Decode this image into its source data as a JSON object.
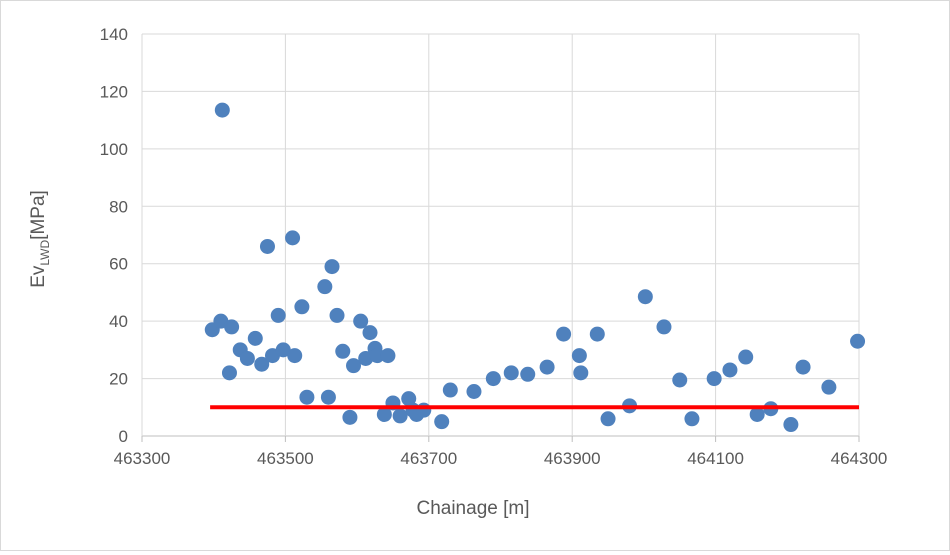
{
  "chart_data": {
    "type": "scatter",
    "title": "",
    "xlabel": "Chainage [m]",
    "ylabel": {
      "main": "Ev",
      "subscript": "LWD",
      "unit": "[MPa]"
    },
    "xlim": [
      463300,
      464300
    ],
    "ylim": [
      0,
      140
    ],
    "xticks": [
      "463300",
      "463500",
      "463700",
      "463900",
      "464100",
      "464300"
    ],
    "yticks": [
      "0",
      "20",
      "40",
      "60",
      "80",
      "100",
      "120",
      "140"
    ],
    "grid": true,
    "legend": "none",
    "colors": {
      "points": "#4f81bd",
      "threshold": "#ff0000",
      "grid": "#d9d9d9",
      "axis": "#bfbfbf",
      "text": "#595959"
    },
    "threshold": {
      "y": 10,
      "x_from": 463395,
      "x_to": 464300
    },
    "series": [
      {
        "points": [
          [
            463398,
            37
          ],
          [
            463410,
            40
          ],
          [
            463412,
            113.5
          ],
          [
            463422,
            22
          ],
          [
            463425,
            38
          ],
          [
            463437,
            30
          ],
          [
            463447,
            27
          ],
          [
            463458,
            34
          ],
          [
            463467,
            25
          ],
          [
            463475,
            66
          ],
          [
            463482,
            28
          ],
          [
            463490,
            42
          ],
          [
            463497,
            30
          ],
          [
            463510,
            69
          ],
          [
            463513,
            28
          ],
          [
            463523,
            45
          ],
          [
            463530,
            13.5
          ],
          [
            463555,
            52
          ],
          [
            463560,
            13.5
          ],
          [
            463565,
            59
          ],
          [
            463572,
            42
          ],
          [
            463580,
            29.5
          ],
          [
            463590,
            6.5
          ],
          [
            463595,
            24.5
          ],
          [
            463605,
            40
          ],
          [
            463612,
            27
          ],
          [
            463618,
            36
          ],
          [
            463625,
            30.5
          ],
          [
            463628,
            28
          ],
          [
            463638,
            7.5
          ],
          [
            463643,
            28
          ],
          [
            463650,
            11.5
          ],
          [
            463660,
            7
          ],
          [
            463672,
            13
          ],
          [
            463678,
            9
          ],
          [
            463683,
            7.5
          ],
          [
            463693,
            9
          ],
          [
            463718,
            5
          ],
          [
            463730,
            16
          ],
          [
            463763,
            15.5
          ],
          [
            463790,
            20
          ],
          [
            463815,
            22
          ],
          [
            463838,
            21.5
          ],
          [
            463865,
            24
          ],
          [
            463888,
            35.5
          ],
          [
            463910,
            28
          ],
          [
            463912,
            22
          ],
          [
            463935,
            35.5
          ],
          [
            463950,
            6
          ],
          [
            463980,
            10.5
          ],
          [
            464002,
            48.5
          ],
          [
            464028,
            38
          ],
          [
            464050,
            19.5
          ],
          [
            464067,
            6
          ],
          [
            464098,
            20
          ],
          [
            464120,
            23
          ],
          [
            464142,
            27.5
          ],
          [
            464158,
            7.5
          ],
          [
            464177,
            9.5
          ],
          [
            464205,
            4
          ],
          [
            464222,
            24
          ],
          [
            464258,
            17
          ],
          [
            464298,
            33
          ]
        ]
      }
    ]
  }
}
